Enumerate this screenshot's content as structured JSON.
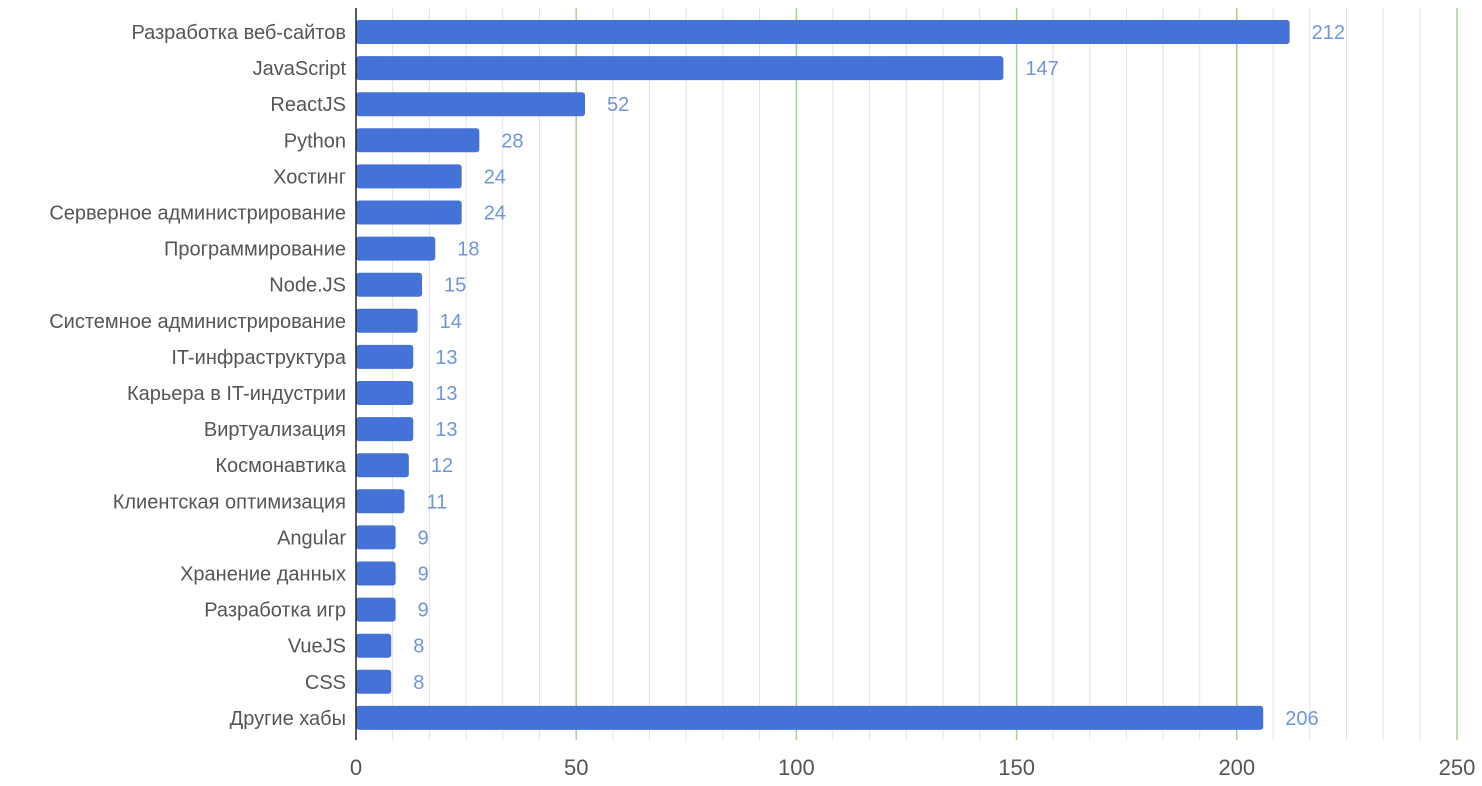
{
  "chart_data": {
    "type": "bar",
    "orientation": "horizontal",
    "categories": [
      "Разработка веб-сайтов",
      "JavaScript",
      "ReactJS",
      "Python",
      "Хостинг",
      "Серверное администрирование",
      "Программирование",
      "Node.JS",
      "Системное администрирование",
      "IT-инфраструктура",
      "Карьера в IT-индустрии",
      "Виртуализация",
      "Космонавтика",
      "Клиентская оптимизация",
      "Angular",
      "Хранение данных",
      "Разработка игр",
      "VueJS",
      "CSS",
      "Другие хабы"
    ],
    "values": [
      212,
      147,
      52,
      28,
      24,
      24,
      18,
      15,
      14,
      13,
      13,
      13,
      12,
      11,
      9,
      9,
      9,
      8,
      8,
      206
    ],
    "value_labels": [
      "212",
      "147",
      "52",
      "28",
      "24",
      "24",
      "18",
      "15",
      "14",
      "13",
      "13",
      "13",
      "12",
      "11",
      "9",
      "9",
      "9",
      "8",
      "8",
      "206"
    ],
    "title": "",
    "xlabel": "",
    "ylabel": "",
    "xlim": [
      0,
      250
    ],
    "major_ticks": [
      0,
      50,
      100,
      150,
      200,
      250
    ],
    "major_tick_labels": [
      "0",
      "50",
      "100",
      "150",
      "200",
      "250"
    ],
    "minor_tick_step": 8.33,
    "grid": true,
    "legend": "none",
    "colors": {
      "bar": "#4472d6",
      "value_label": "#6f95dc",
      "major_grid": "#a9d18e",
      "minor_grid": "#e3e3e3",
      "axis": "#222222",
      "text": "#555555"
    }
  }
}
